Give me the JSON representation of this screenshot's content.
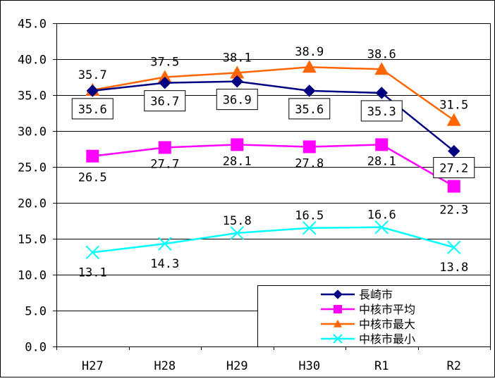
{
  "chart_data": {
    "type": "line",
    "categories": [
      "H27",
      "H28",
      "H29",
      "H30",
      "R1",
      "R2"
    ],
    "ylim": [
      0,
      45
    ],
    "yticks": [
      "0.0",
      "5.0",
      "10.0",
      "15.0",
      "20.0",
      "25.0",
      "30.0",
      "35.0",
      "40.0",
      "45.0"
    ],
    "grid": true,
    "legend_position": "bottom-right",
    "series": [
      {
        "name": "長崎市",
        "values": [
          35.6,
          36.7,
          36.9,
          35.6,
          35.3,
          27.2
        ],
        "labels": [
          "35.6",
          "36.7",
          "36.9",
          "35.6",
          "35.3",
          "27.2"
        ],
        "color": "#000080",
        "marker": "diamond",
        "boxed_labels": true
      },
      {
        "name": "中核市平均",
        "values": [
          26.5,
          27.7,
          28.1,
          27.8,
          28.1,
          22.3
        ],
        "labels": [
          "26.5",
          "27.7",
          "28.1",
          "27.8",
          "28.1",
          "22.3"
        ],
        "color": "#ff00ff",
        "marker": "square",
        "boxed_labels": false
      },
      {
        "name": "中核市最大",
        "values": [
          35.7,
          37.5,
          38.1,
          38.9,
          38.6,
          31.5
        ],
        "labels": [
          "35.7",
          "37.5",
          "38.1",
          "38.9",
          "38.6",
          "31.5"
        ],
        "color": "#ff6600",
        "marker": "triangle",
        "boxed_labels": false
      },
      {
        "name": "中核市最小",
        "values": [
          13.1,
          14.3,
          15.8,
          16.5,
          16.6,
          13.8
        ],
        "labels": [
          "13.1",
          "14.3",
          "15.8",
          "16.5",
          "16.6",
          "13.8"
        ],
        "color": "#00ffff",
        "marker": "x",
        "boxed_labels": false
      }
    ]
  }
}
